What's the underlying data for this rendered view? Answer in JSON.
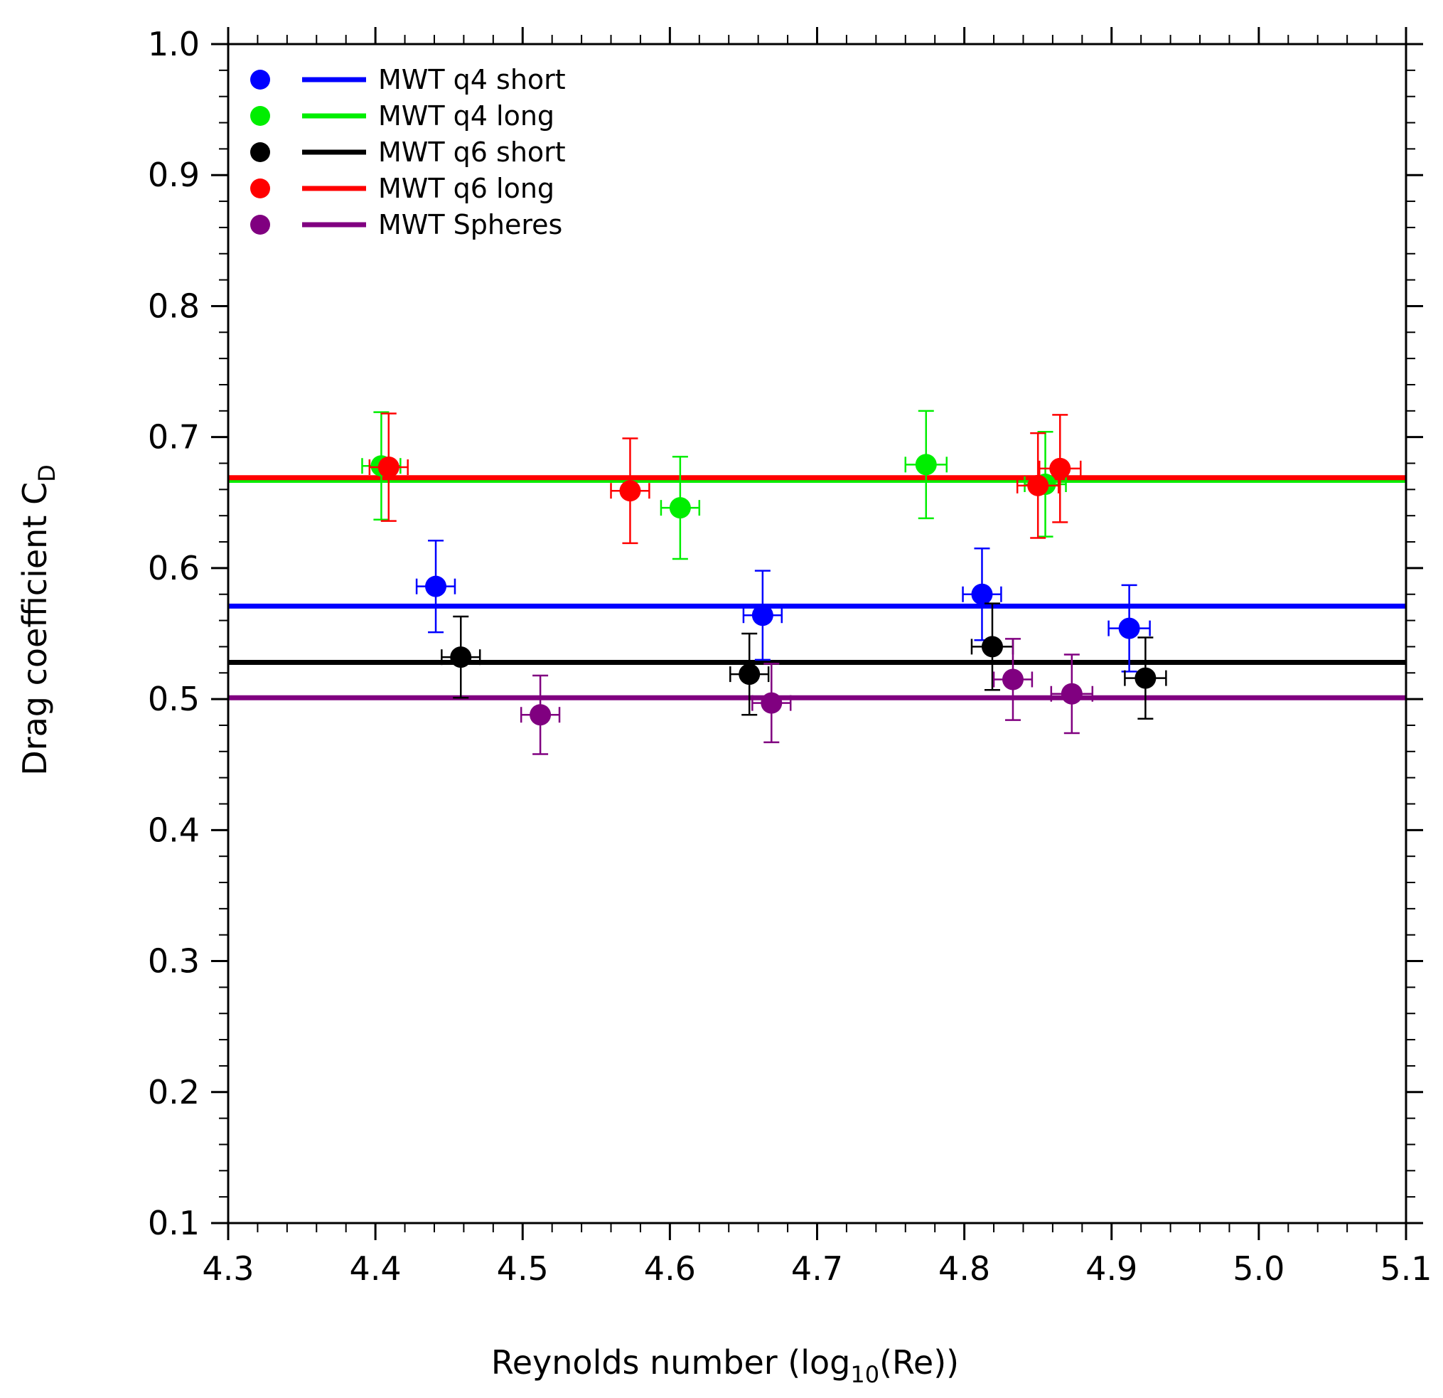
{
  "chart_data": {
    "type": "scatter",
    "title": "",
    "xlabel": {
      "main": "Reynolds number (log",
      "sub": "10",
      "tail": "(Re))"
    },
    "ylabel": {
      "main": "Drag coefficient C",
      "sub": "D"
    },
    "xlim": [
      4.3,
      5.1
    ],
    "ylim": [
      0.1,
      1.0
    ],
    "x_ticks": [
      "4.3",
      "4.4",
      "4.5",
      "4.6",
      "4.7",
      "4.8",
      "4.9",
      "5.0",
      "5.1"
    ],
    "y_ticks": [
      "0.1",
      "0.2",
      "0.3",
      "0.4",
      "0.5",
      "0.6",
      "0.7",
      "0.8",
      "0.9",
      "1.0"
    ],
    "x_minor_step": 0.02,
    "y_minor_step": 0.02,
    "legend_position": "top-left",
    "series": [
      {
        "name": "MWT q4 short",
        "color": "#0000ff",
        "mean": 0.571,
        "points": [
          {
            "x": 4.441,
            "y": 0.586,
            "xerr": 0.013,
            "yerr": 0.035
          },
          {
            "x": 4.663,
            "y": 0.564,
            "xerr": 0.013,
            "yerr": 0.034
          },
          {
            "x": 4.812,
            "y": 0.58,
            "xerr": 0.013,
            "yerr": 0.035
          },
          {
            "x": 4.912,
            "y": 0.554,
            "xerr": 0.014,
            "yerr": 0.033
          }
        ]
      },
      {
        "name": "MWT q4 long",
        "color": "#00ee00",
        "mean": 0.667,
        "points": [
          {
            "x": 4.404,
            "y": 0.678,
            "xerr": 0.013,
            "yerr": 0.041
          },
          {
            "x": 4.607,
            "y": 0.646,
            "xerr": 0.013,
            "yerr": 0.039
          },
          {
            "x": 4.774,
            "y": 0.679,
            "xerr": 0.014,
            "yerr": 0.041
          },
          {
            "x": 4.855,
            "y": 0.664,
            "xerr": 0.014,
            "yerr": 0.04
          }
        ]
      },
      {
        "name": "MWT q6 short",
        "color": "#000000",
        "mean": 0.528,
        "points": [
          {
            "x": 4.458,
            "y": 0.532,
            "xerr": 0.013,
            "yerr": 0.031
          },
          {
            "x": 4.654,
            "y": 0.519,
            "xerr": 0.013,
            "yerr": 0.031
          },
          {
            "x": 4.819,
            "y": 0.54,
            "xerr": 0.014,
            "yerr": 0.033
          },
          {
            "x": 4.923,
            "y": 0.516,
            "xerr": 0.014,
            "yerr": 0.031
          }
        ]
      },
      {
        "name": "MWT q6 long",
        "color": "#ff0000",
        "mean": 0.669,
        "points": [
          {
            "x": 4.409,
            "y": 0.677,
            "xerr": 0.013,
            "yerr": 0.041
          },
          {
            "x": 4.573,
            "y": 0.659,
            "xerr": 0.013,
            "yerr": 0.04
          },
          {
            "x": 4.85,
            "y": 0.663,
            "xerr": 0.014,
            "yerr": 0.04
          },
          {
            "x": 4.865,
            "y": 0.676,
            "xerr": 0.014,
            "yerr": 0.041
          }
        ]
      },
      {
        "name": "MWT Spheres",
        "color": "#800080",
        "mean": 0.501,
        "points": [
          {
            "x": 4.512,
            "y": 0.488,
            "xerr": 0.013,
            "yerr": 0.03
          },
          {
            "x": 4.669,
            "y": 0.497,
            "xerr": 0.013,
            "yerr": 0.03
          },
          {
            "x": 4.833,
            "y": 0.515,
            "xerr": 0.013,
            "yerr": 0.031
          },
          {
            "x": 4.873,
            "y": 0.504,
            "xerr": 0.014,
            "yerr": 0.03
          }
        ]
      }
    ]
  }
}
